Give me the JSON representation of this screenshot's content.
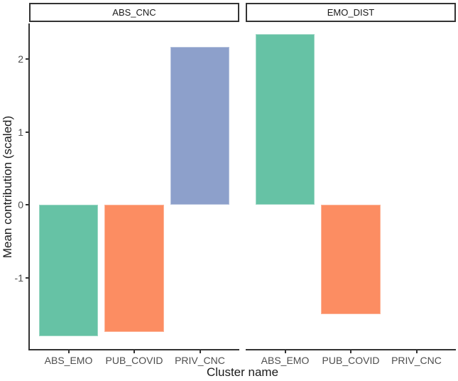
{
  "chart_data": {
    "type": "bar",
    "faceted": true,
    "title": "",
    "xlabel": "Cluster name",
    "ylabel": "Mean contribution (scaled)",
    "categories": [
      "ABS_EMO",
      "PUB_COVID",
      "PRIV_CNC"
    ],
    "facets": [
      {
        "label": "ABS_CNC",
        "values": [
          -1.8,
          -1.75,
          2.17
        ]
      },
      {
        "label": "EMO_DIST",
        "values": [
          2.34,
          -1.5,
          0
        ]
      }
    ],
    "y_ticks": [
      2,
      1,
      0,
      -1
    ],
    "ylim": [
      -1.98,
      2.49
    ],
    "grid": false,
    "legend": "none",
    "bar_width_frac": 0.9,
    "category_colors": {
      "ABS_EMO": "#66C2A5",
      "PUB_COVID": "#FC8D62",
      "PRIV_CNC": "#8DA0CB"
    },
    "axis_line_color": "#333333",
    "tick_label_color": "#4D4D4D",
    "text_color": "#1A1A1A",
    "panel_background": "#FFFFFF"
  }
}
